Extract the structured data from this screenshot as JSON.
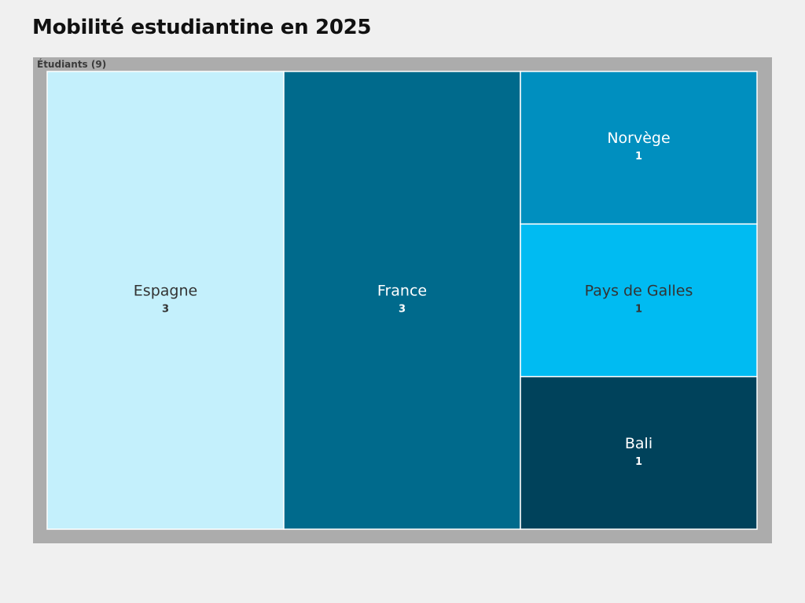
{
  "title": "Mobilité estudiantine en 2025",
  "chart_data": {
    "type": "treemap",
    "title": "Mobilité estudiantine en 2025",
    "root": {
      "name": "Étudiants",
      "label": "Étudiants (9)",
      "value": 9
    },
    "categories": [
      "Espagne",
      "France",
      "Norvège",
      "Pays de Galles",
      "Bali"
    ],
    "values": [
      3,
      3,
      1,
      1,
      1
    ],
    "value_labels": [
      "3",
      "3",
      "1",
      "1",
      "1"
    ],
    "colors": [
      "#c4f0fc",
      "#006a8c",
      "#008fbf",
      "#00bbf2",
      "#00425b"
    ],
    "label_colors": [
      "#333333",
      "#ffffff",
      "#ffffff",
      "#333333",
      "#ffffff"
    ],
    "frame_color": "#acacac",
    "border_color": "#ffffff"
  }
}
